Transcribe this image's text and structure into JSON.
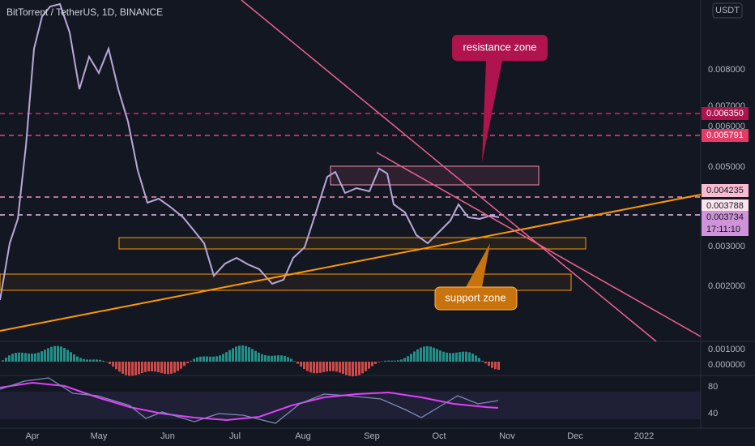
{
  "header": {
    "title": "BitTorrent / TetherUS, 1D, BINANCE",
    "currency": "USDT"
  },
  "price_axis": {
    "labels": [
      "0.008000",
      "0.007000",
      "0.006000",
      "0.005000",
      "0.003000",
      "0.002000",
      "0.001000",
      "0.000000"
    ]
  },
  "price_tags": [
    "0.006350",
    "0.005791",
    "0.004235",
    "0.003788",
    "0.003734"
  ],
  "countdown": "17:11:10",
  "rsi_axis": [
    "80",
    "40"
  ],
  "time_axis": [
    "Apr",
    "May",
    "Jun",
    "Jul",
    "Aug",
    "Sep",
    "Oct",
    "Nov",
    "Dec",
    "2022"
  ],
  "annotations": {
    "resistance": "resistance zone",
    "support": "support zone"
  }
}
